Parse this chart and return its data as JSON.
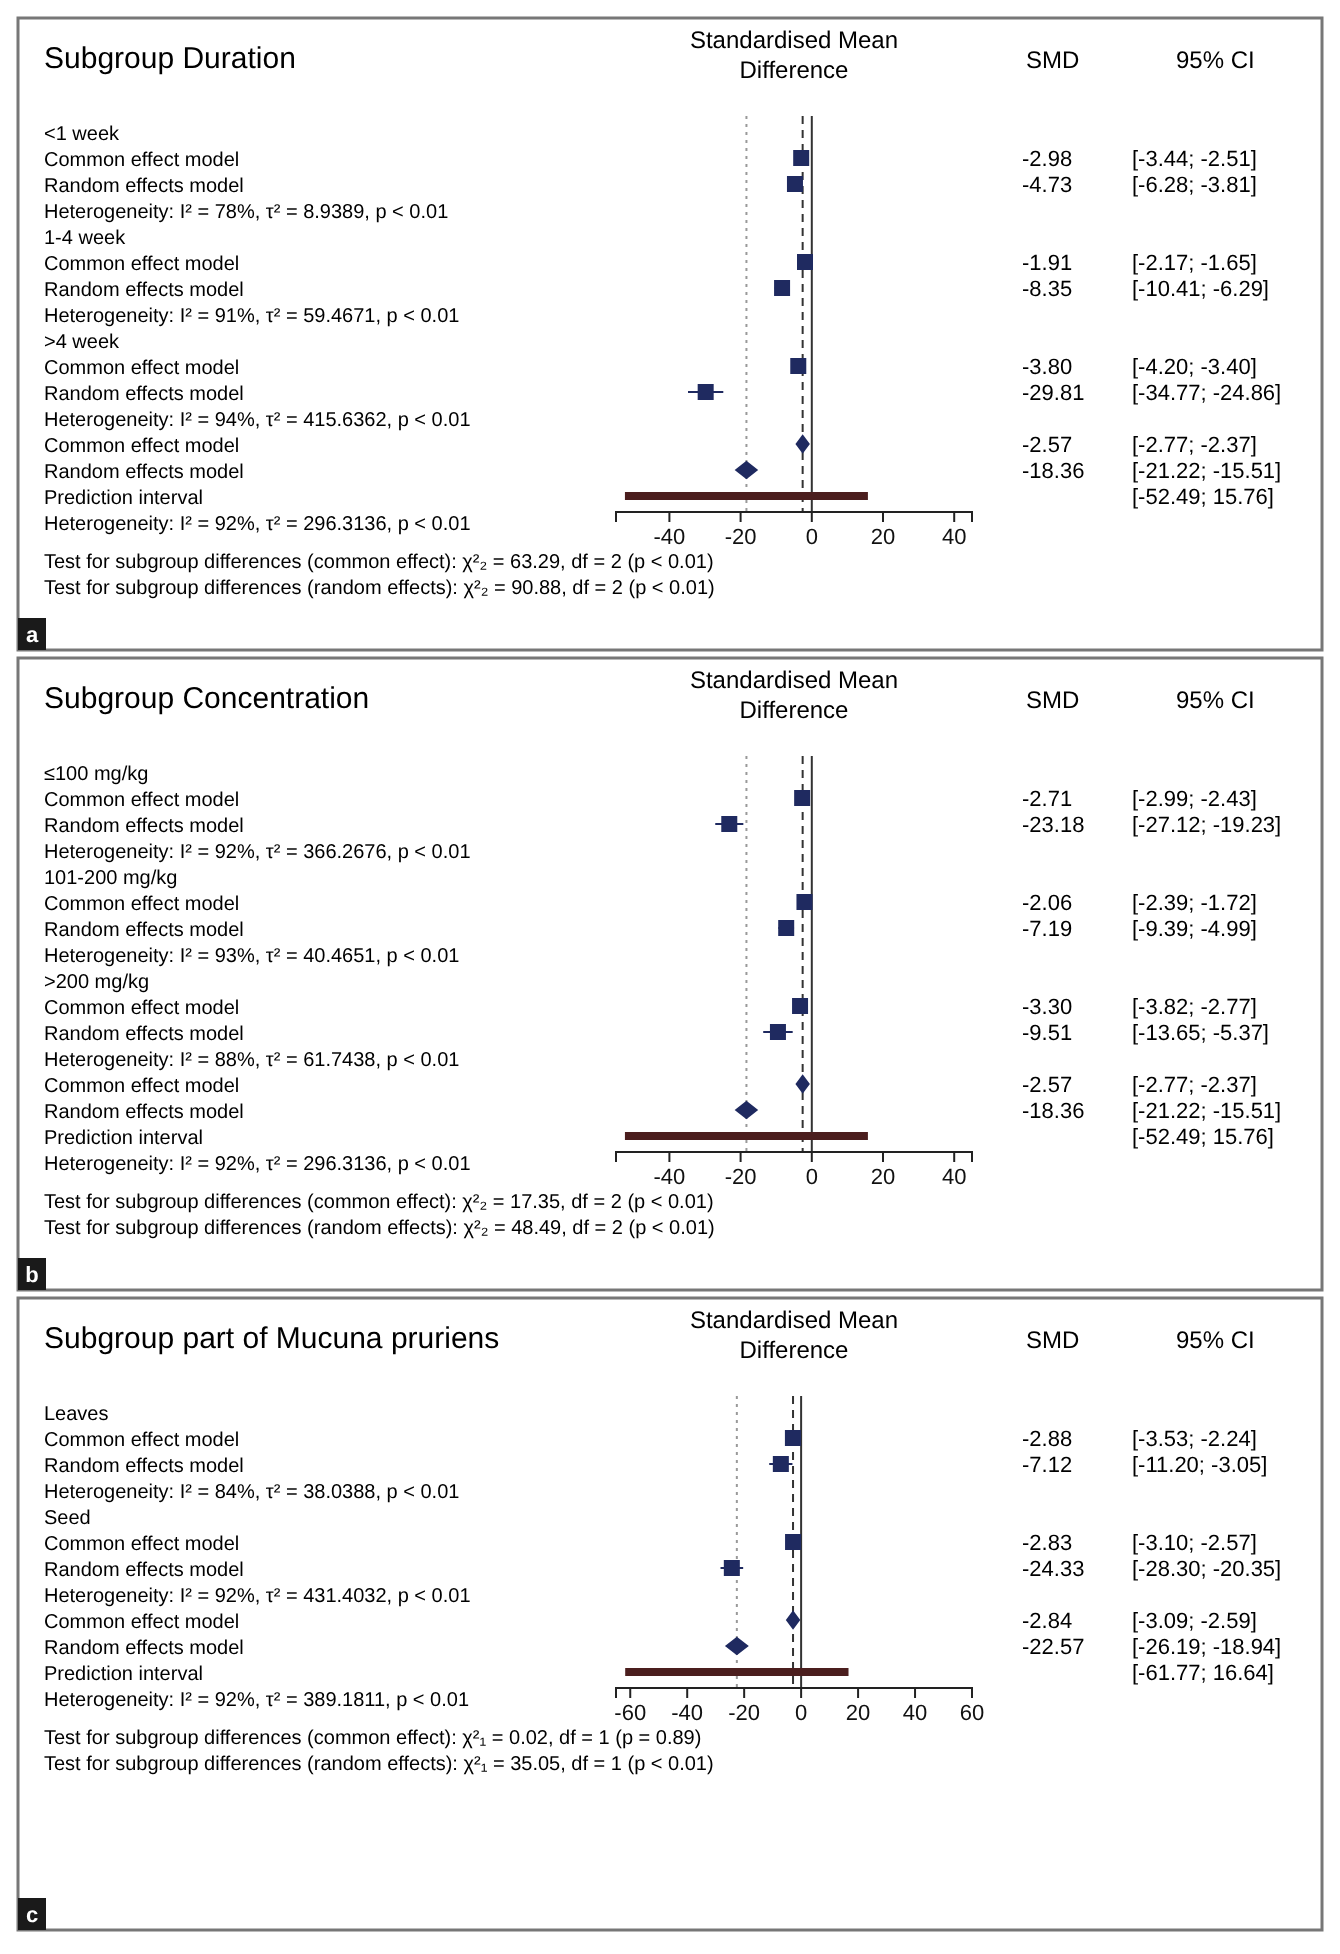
{
  "chart_data": [
    {
      "type": "bar",
      "orientation": "horizontal",
      "title": "Subgroup Duration",
      "xlabel": "Standardised Mean Difference",
      "categories": [
        "<1 week",
        "Common effect model",
        "Random effects model",
        "Heterogeneity: I² = 78%, τ² = 8.9389, p < 0.01",
        "1-4 week",
        "Common effect model",
        "Random effects model",
        "Heterogeneity: I² = 91%, τ² = 59.4671, p < 0.01",
        ">4 week",
        "Common effect model",
        "Random effects model",
        "Heterogeneity: I² = 94%, τ² = 415.6362, p < 0.01",
        "Common effect model",
        "Random effects model",
        "Prediction interval",
        "Heterogeneity: I² = 92%, τ² = 296.3136, p < 0.01",
        "Test for subgroup differences (common effect): χ²₂ = 63.29, df = 2 (p < 0.01)",
        "Test for subgroup differences (random effects): χ²₂ = 90.88, df = 2 (p < 0.01)"
      ],
      "series": [
        {
          "type": "scatter",
          "color": "#1f2a60",
          "marker": "square",
          "values": [
            null,
            -2.98,
            -4.73,
            null,
            null,
            -1.91,
            -8.35,
            null,
            null,
            -3.8,
            -29.81,
            null,
            null,
            null,
            null,
            null,
            null,
            null
          ],
          "errors": [
            null,
            [
              -3.44,
              -2.51
            ],
            [
              -6.28,
              -3.81
            ],
            null,
            null,
            [
              -2.17,
              -1.65
            ],
            [
              -10.41,
              -6.29
            ],
            null,
            null,
            [
              -4.2,
              -3.4
            ],
            [
              -34.77,
              -24.86
            ],
            null,
            null,
            null,
            null,
            null,
            null,
            null
          ]
        },
        {
          "type": "scatter",
          "color": "#1f2a60",
          "marker": "diamond",
          "values": [
            null,
            null,
            null,
            null,
            null,
            null,
            null,
            null,
            null,
            null,
            null,
            null,
            -2.57,
            -18.36,
            null,
            null,
            null,
            null
          ],
          "errors": [
            null,
            null,
            null,
            null,
            null,
            null,
            null,
            null,
            null,
            null,
            null,
            null,
            null,
            [
              -21.22,
              -15.51
            ],
            null,
            null,
            null,
            null
          ]
        },
        {
          "type": "bar",
          "color": "#4b1e1e",
          "values": [
            null,
            null,
            null,
            null,
            null,
            null,
            null,
            null,
            null,
            null,
            null,
            null,
            null,
            null,
            68.25,
            null,
            null,
            null
          ],
          "base": [
            null,
            null,
            null,
            null,
            null,
            null,
            null,
            null,
            null,
            null,
            null,
            null,
            null,
            null,
            -52.49,
            null,
            null,
            null
          ]
        }
      ],
      "xlim": [
        -55,
        45
      ],
      "xticks": [
        -40,
        -20,
        0,
        20,
        40
      ],
      "ref_lines": [
        {
          "axis": "x",
          "value": 0,
          "line_style": "solid",
          "color": "#333333"
        },
        {
          "axis": "x",
          "value": -2.57,
          "line_style": "dashed",
          "color": "#333333"
        },
        {
          "axis": "x",
          "value": -18.36,
          "line_style": "dotted",
          "color": "#999999"
        }
      ],
      "annotations": [
        "a",
        "SMD",
        "95% CI",
        "-2.98",
        "[-3.44; -2.51]",
        "-4.73",
        "[-6.28; -3.81]",
        "-1.91",
        "[-2.17; -1.65]",
        "-8.35",
        "[-10.41; -6.29]",
        "-3.80",
        "[-4.20; -3.40]",
        "-29.81",
        "[-34.77; -24.86]",
        "-2.57",
        "[-2.77; -2.37]",
        "-18.36",
        "[-21.22; -15.51]",
        "[-52.49; 15.76]"
      ]
    },
    {
      "type": "bar",
      "orientation": "horizontal",
      "title": "Subgroup Concentration",
      "xlabel": "Standardised Mean Difference",
      "categories": [
        "≤100 mg/kg",
        "Common effect model",
        "Random effects model",
        "Heterogeneity: I² = 92%, τ² = 366.2676, p < 0.01",
        "101-200 mg/kg",
        "Common effect model",
        "Random effects model",
        "Heterogeneity: I² = 93%, τ² = 40.4651, p < 0.01",
        ">200 mg/kg",
        "Common effect model",
        "Random effects model",
        "Heterogeneity: I² = 88%, τ² = 61.7438, p < 0.01",
        "Common effect model",
        "Random effects model",
        "Prediction interval",
        "Heterogeneity: I² = 92%, τ² = 296.3136, p < 0.01",
        "Test for subgroup differences (common effect): χ²₂ = 17.35, df = 2 (p < 0.01)",
        "Test for subgroup differences (random effects): χ²₂ = 48.49, df = 2 (p < 0.01)"
      ],
      "series": [
        {
          "type": "scatter",
          "color": "#1f2a60",
          "marker": "square",
          "values": [
            null,
            -2.71,
            -23.18,
            null,
            null,
            -2.06,
            -7.19,
            null,
            null,
            -3.3,
            -9.51,
            null,
            null,
            null,
            null,
            null,
            null,
            null
          ],
          "errors": [
            null,
            [
              -2.99,
              -2.43
            ],
            [
              -27.12,
              -19.23
            ],
            null,
            null,
            [
              -2.39,
              -1.72
            ],
            [
              -9.39,
              -4.99
            ],
            null,
            null,
            [
              -3.82,
              -2.77
            ],
            [
              -13.65,
              -5.37
            ],
            null,
            null,
            null,
            null,
            null,
            null,
            null
          ]
        },
        {
          "type": "scatter",
          "color": "#1f2a60",
          "marker": "diamond",
          "values": [
            null,
            null,
            null,
            null,
            null,
            null,
            null,
            null,
            null,
            null,
            null,
            null,
            -2.57,
            -18.36,
            null,
            null,
            null,
            null
          ],
          "errors": [
            null,
            null,
            null,
            null,
            null,
            null,
            null,
            null,
            null,
            null,
            null,
            null,
            null,
            [
              -21.22,
              -15.51
            ],
            null,
            null,
            null,
            null
          ]
        },
        {
          "type": "bar",
          "color": "#4b1e1e",
          "values": [
            null,
            null,
            null,
            null,
            null,
            null,
            null,
            null,
            null,
            null,
            null,
            null,
            null,
            null,
            68.25,
            null,
            null,
            null
          ],
          "base": [
            null,
            null,
            null,
            null,
            null,
            null,
            null,
            null,
            null,
            null,
            null,
            null,
            null,
            null,
            -52.49,
            null,
            null,
            null
          ]
        }
      ],
      "xlim": [
        -55,
        45
      ],
      "xticks": [
        -40,
        -20,
        0,
        20,
        40
      ],
      "ref_lines": [
        {
          "axis": "x",
          "value": 0,
          "line_style": "solid",
          "color": "#333333"
        },
        {
          "axis": "x",
          "value": -2.57,
          "line_style": "dashed",
          "color": "#333333"
        },
        {
          "axis": "x",
          "value": -18.36,
          "line_style": "dotted",
          "color": "#999999"
        }
      ],
      "annotations": [
        "b",
        "SMD",
        "95% CI",
        "-2.71",
        "[-2.99; -2.43]",
        "-23.18",
        "[-27.12; -19.23]",
        "-2.06",
        "[-2.39; -1.72]",
        "-7.19",
        "[-9.39; -4.99]",
        "-3.30",
        "[-3.82; -2.77]",
        "-9.51",
        "[-13.65; -5.37]",
        "-2.57",
        "[-2.77; -2.37]",
        "-18.36",
        "[-21.22; -15.51]",
        "[-52.49; 15.76]"
      ]
    },
    {
      "type": "bar",
      "orientation": "horizontal",
      "title": "Subgroup part of Mucuna pruriens",
      "xlabel": "Standardised Mean Difference",
      "categories": [
        "Leaves",
        "Common effect model",
        "Random effects model",
        "Heterogeneity: I² = 84%, τ² = 38.0388, p < 0.01",
        "Seed",
        "Common effect model",
        "Random effects model",
        "Heterogeneity: I² = 92%, τ² = 431.4032, p < 0.01",
        "Common effect model",
        "Random effects model",
        "Prediction interval",
        "Heterogeneity: I² = 92%, τ² = 389.1811, p < 0.01",
        "Test for subgroup differences (common effect): χ²₁ = 0.02, df = 1 (p = 0.89)",
        "Test for subgroup differences (random effects): χ²₁ = 35.05, df = 1 (p < 0.01)"
      ],
      "series": [
        {
          "type": "scatter",
          "color": "#1f2a60",
          "marker": "square",
          "values": [
            null,
            -2.88,
            -7.12,
            null,
            null,
            -2.83,
            -24.33,
            null,
            null,
            null,
            null,
            null,
            null,
            null
          ],
          "errors": [
            null,
            [
              -3.53,
              -2.24
            ],
            [
              -11.2,
              -3.05
            ],
            null,
            null,
            [
              -3.1,
              -2.57
            ],
            [
              -28.3,
              -20.35
            ],
            null,
            null,
            null,
            null,
            null,
            null,
            null
          ]
        },
        {
          "type": "scatter",
          "color": "#1f2a60",
          "marker": "diamond",
          "values": [
            null,
            null,
            null,
            null,
            null,
            null,
            null,
            null,
            -2.84,
            -22.57,
            null,
            null,
            null,
            null
          ],
          "errors": [
            null,
            null,
            null,
            null,
            null,
            null,
            null,
            null,
            null,
            [
              -26.19,
              -18.94
            ],
            null,
            null,
            null,
            null
          ]
        },
        {
          "type": "bar",
          "color": "#4b1e1e",
          "values": [
            null,
            null,
            null,
            null,
            null,
            null,
            null,
            null,
            null,
            null,
            78.41,
            null,
            null,
            null
          ],
          "base": [
            null,
            null,
            null,
            null,
            null,
            null,
            null,
            null,
            null,
            null,
            -61.77,
            null,
            null,
            null
          ]
        }
      ],
      "xlim": [
        -65,
        60
      ],
      "xticks": [
        -60,
        -40,
        -20,
        0,
        20,
        40,
        60
      ],
      "ref_lines": [
        {
          "axis": "x",
          "value": 0,
          "line_style": "solid",
          "color": "#333333"
        },
        {
          "axis": "x",
          "value": -2.84,
          "line_style": "dashed",
          "color": "#333333"
        },
        {
          "axis": "x",
          "value": -22.57,
          "line_style": "dotted",
          "color": "#999999"
        }
      ],
      "annotations": [
        "c",
        "SMD",
        "95% CI",
        "-2.88",
        "[-3.53; -2.24]",
        "-7.12",
        "[-11.20; -3.05]",
        "-2.83",
        "[-3.10; -2.57]",
        "-24.33",
        "[-28.30; -20.35]",
        "-2.84",
        "[-3.09; -2.59]",
        "-22.57",
        "[-26.19; -18.94]",
        "[-61.77; 16.64]"
      ]
    }
  ]
}
